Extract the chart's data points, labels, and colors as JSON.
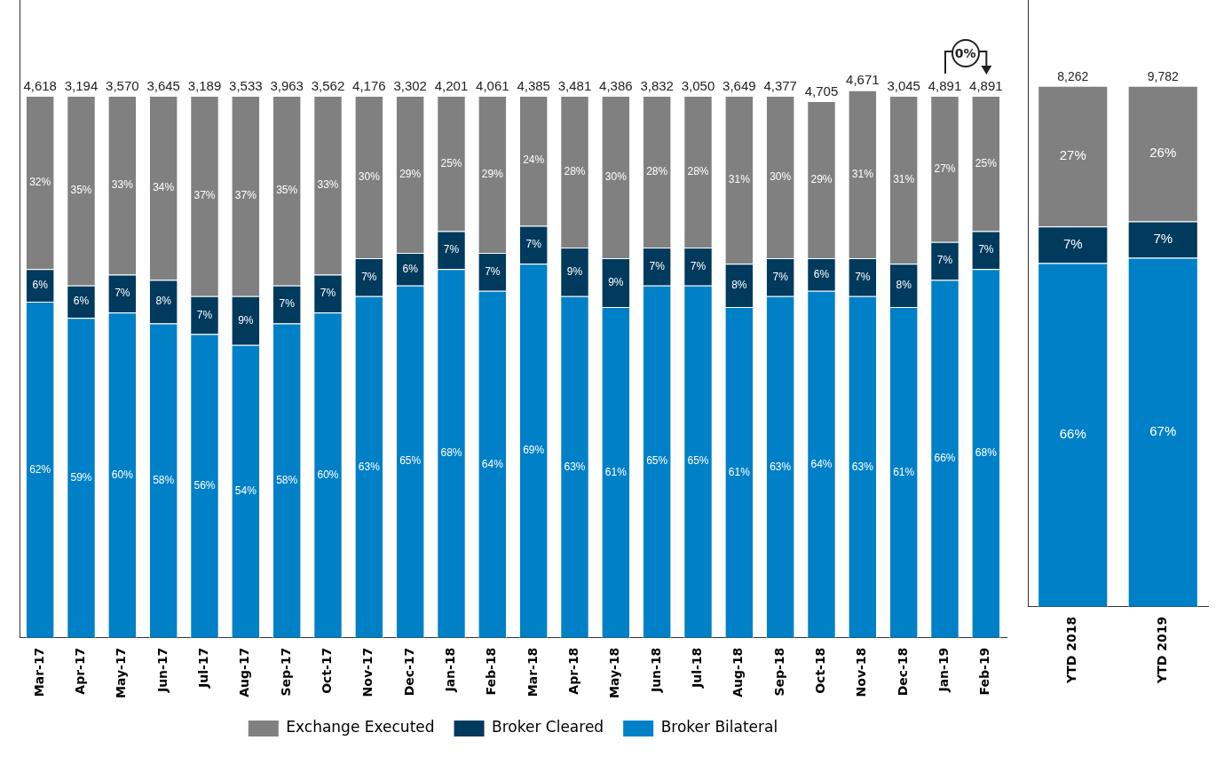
{
  "chart_data": [
    {
      "type": "bar",
      "stacked": true,
      "tick_labels": "x",
      "legend": "bottom",
      "categories": [
        "Mar-17",
        "Apr-17",
        "May-17",
        "Jun-17",
        "Jul-17",
        "Aug-17",
        "Sep-17",
        "Oct-17",
        "Nov-17",
        "Dec-17",
        "Jan-18",
        "Feb-18",
        "Mar-18",
        "Apr-18",
        "May-18",
        "Jun-18",
        "Jul-18",
        "Aug-18",
        "Sep-18",
        "Oct-18",
        "Nov-18",
        "Dec-18",
        "Jan-19",
        "Feb-19"
      ],
      "series": [
        {
          "name": "Broker Bilateral",
          "color": "#0080c6",
          "values": [
            62,
            59,
            60,
            58,
            56,
            54,
            58,
            60,
            63,
            65,
            68,
            64,
            69,
            63,
            61,
            65,
            65,
            61,
            63,
            64,
            63,
            61,
            66,
            68
          ],
          "value_labels": [
            "62%",
            "59%",
            "60%",
            "58%",
            "56%",
            "54%",
            "58%",
            "60%",
            "63%",
            "65%",
            "68%",
            "64%",
            "69%",
            "63%",
            "61%",
            "65%",
            "65%",
            "61%",
            "63%",
            "64%",
            "63%",
            "61%",
            "66%",
            "68%"
          ]
        },
        {
          "name": "Broker Cleared",
          "color": "#003a5d",
          "values": [
            6,
            6,
            7,
            8,
            7,
            9,
            7,
            7,
            7,
            6,
            7,
            7,
            7,
            9,
            9,
            7,
            7,
            8,
            7,
            6,
            7,
            8,
            7,
            7
          ],
          "value_labels": [
            "6%",
            "6%",
            "7%",
            "8%",
            "7%",
            "9%",
            "7%",
            "7%",
            "7%",
            "6%",
            "7%",
            "7%",
            "7%",
            "9%",
            "9%",
            "7%",
            "7%",
            "8%",
            "7%",
            "6%",
            "7%",
            "8%",
            "7%",
            "7%"
          ]
        },
        {
          "name": "Exchange Executed",
          "color": "#808080",
          "values": [
            32,
            35,
            33,
            34,
            37,
            37,
            35,
            33,
            30,
            29,
            25,
            29,
            24,
            28,
            30,
            28,
            28,
            31,
            30,
            29,
            31,
            31,
            27,
            25
          ],
          "value_labels": [
            "32%",
            "35%",
            "33%",
            "34%",
            "37%",
            "37%",
            "35%",
            "33%",
            "30%",
            "29%",
            "25%",
            "29%",
            "24%",
            "28%",
            "30%",
            "28%",
            "28%",
            "31%",
            "30%",
            "29%",
            "31%",
            "31%",
            "27%",
            "25%"
          ]
        }
      ],
      "annotations": [
        "0%",
        {
          "text": "4,618",
          "x": "Mar-17",
          "y": 100
        },
        {
          "text": "3,194",
          "x": "Apr-17",
          "y": 100
        },
        {
          "text": "3,570",
          "x": "May-17",
          "y": 100
        },
        {
          "text": "3,645",
          "x": "Jun-17",
          "y": 100
        },
        {
          "text": "3,189",
          "x": "Jul-17",
          "y": 100
        },
        {
          "text": "3,533",
          "x": "Aug-17",
          "y": 100
        },
        {
          "text": "3,963",
          "x": "Sep-17",
          "y": 100
        },
        {
          "text": "3,562",
          "x": "Oct-17",
          "y": 100
        },
        {
          "text": "4,176",
          "x": "Nov-17",
          "y": 100
        },
        {
          "text": "3,302",
          "x": "Dec-17",
          "y": 100
        },
        {
          "text": "4,201",
          "x": "Jan-18",
          "y": 100
        },
        {
          "text": "4,061",
          "x": "Feb-18",
          "y": 100
        },
        {
          "text": "4,385",
          "x": "Mar-18",
          "y": 100
        },
        {
          "text": "3,481",
          "x": "Apr-18",
          "y": 100
        },
        {
          "text": "4,386",
          "x": "May-18",
          "y": 100
        },
        {
          "text": "3,832",
          "x": "Jun-18",
          "y": 100
        },
        {
          "text": "3,050",
          "x": "Jul-18",
          "y": 100
        },
        {
          "text": "3,649",
          "x": "Aug-18",
          "y": 100
        },
        {
          "text": "4,377",
          "x": "Sep-18",
          "y": 100
        },
        {
          "text": "4,705",
          "x": "Oct-18",
          "y": 99
        },
        {
          "text": "4,671",
          "x": "Nov-18",
          "y": 101
        },
        {
          "text": "3,045",
          "x": "Dec-18",
          "y": 100
        },
        {
          "text": "4,891",
          "x": "Jan-19",
          "y": 100
        },
        {
          "text": "4,891",
          "x": "Feb-19",
          "y": 100
        }
      ]
    },
    {
      "type": "bar",
      "stacked": true,
      "tick_labels": "x",
      "categories": [
        "YTD 2018",
        "YTD 2019"
      ],
      "series": [
        {
          "color": "#0080c6",
          "values": [
            66,
            67
          ],
          "value_labels": [
            "66%",
            "67%"
          ]
        },
        {
          "color": "#003a5d",
          "values": [
            7,
            7
          ],
          "value_labels": [
            "7%",
            "7%"
          ]
        },
        {
          "color": "#808080",
          "values": [
            27,
            26
          ],
          "value_labels": [
            "27%",
            "26%"
          ]
        }
      ],
      "annotations": [
        {
          "text": "8,262",
          "x": "YTD 2018",
          "y": 100
        },
        {
          "text": "9,782",
          "x": "YTD 2019",
          "y": 100
        }
      ]
    }
  ]
}
